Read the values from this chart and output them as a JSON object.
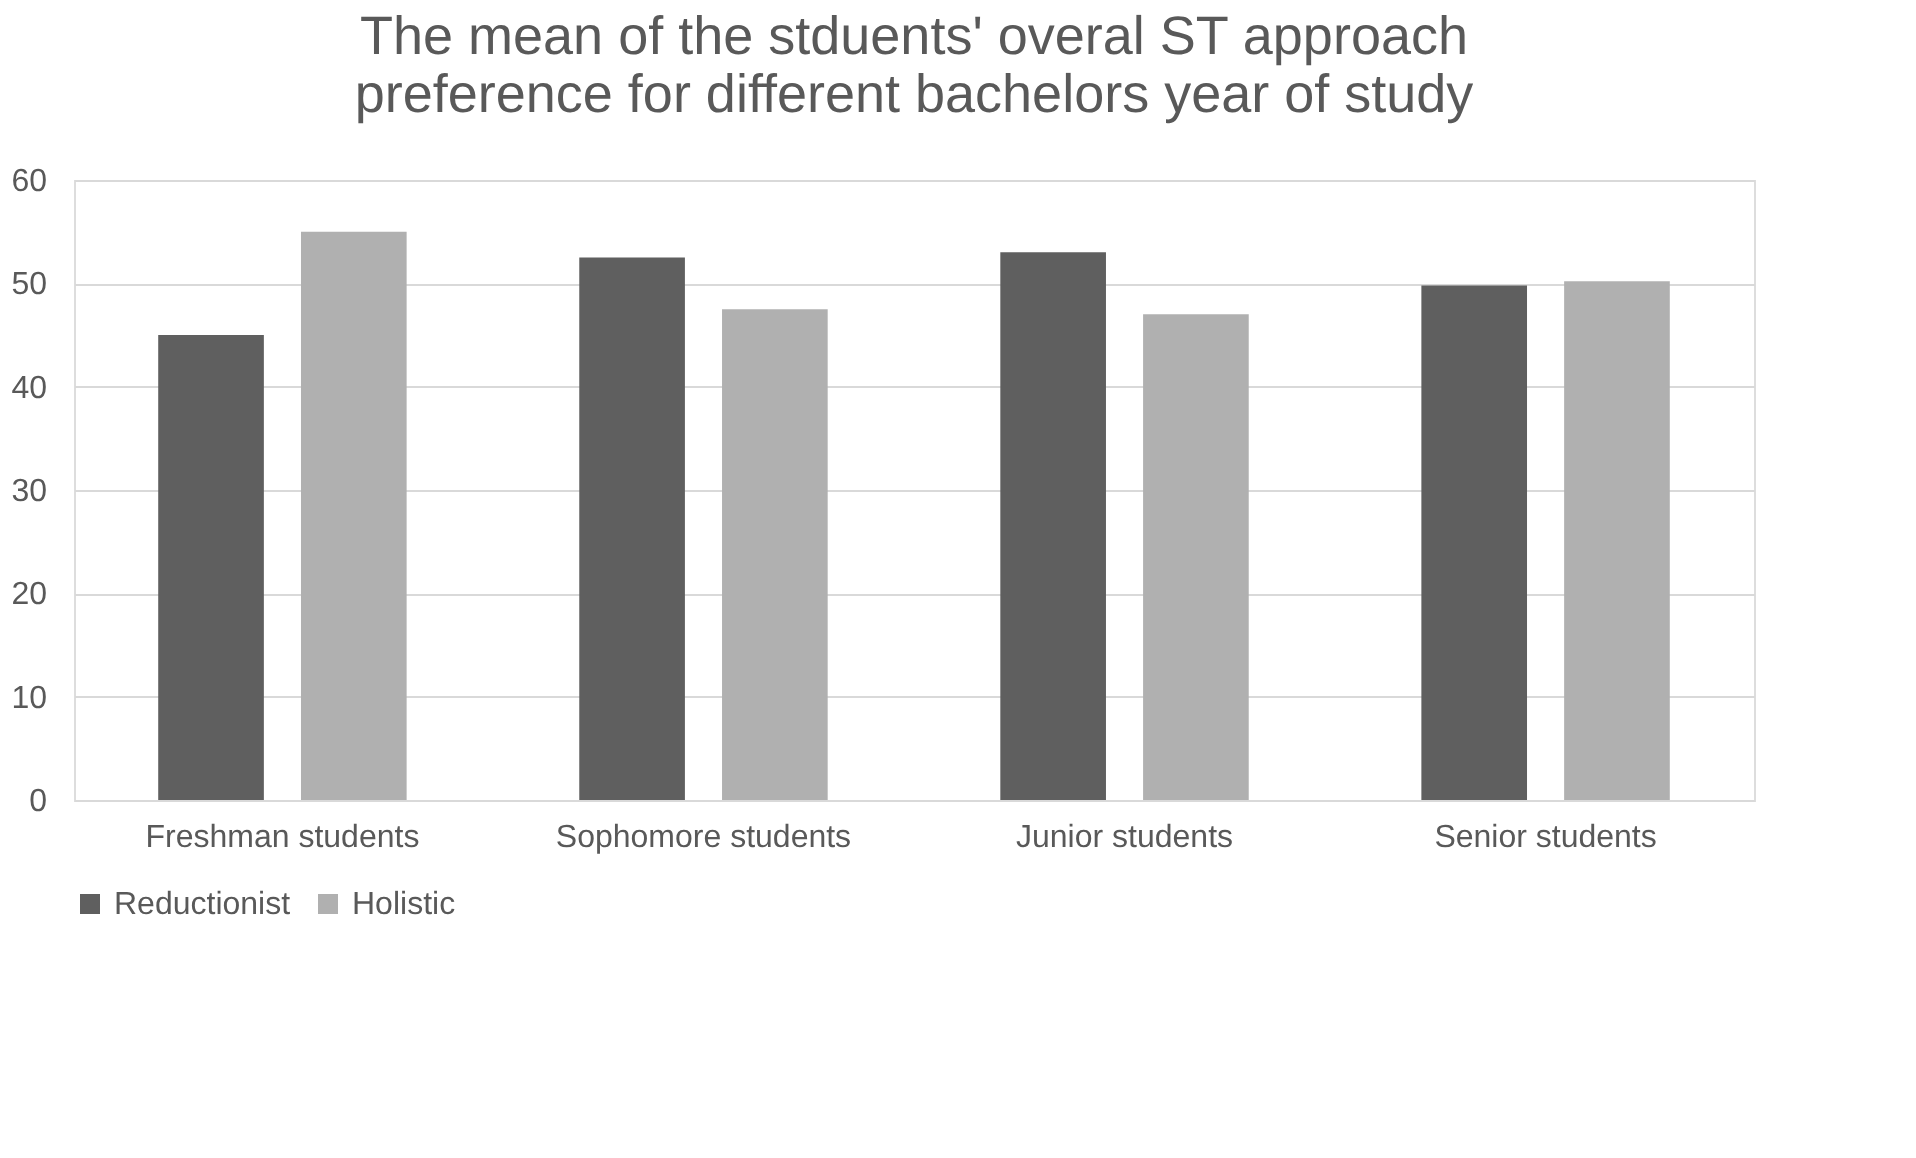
{
  "chart_data": {
    "type": "bar",
    "title": [
      "The mean of the stduents' overal ST approach",
      "preference for different bachelors year of study"
    ],
    "categories": [
      "Freshman students",
      "Sophomore students",
      "Junior students",
      "Senior students"
    ],
    "series": [
      {
        "name": "Reductionist",
        "color": "#5f5f5f",
        "values": [
          45,
          52.5,
          53,
          49.8
        ]
      },
      {
        "name": "Holistic",
        "color": "#b0b0b0",
        "values": [
          55,
          47.5,
          47,
          50.2
        ]
      }
    ],
    "ylim": [
      0,
      60
    ],
    "yticks": [
      0,
      10,
      20,
      30,
      40,
      50,
      60
    ],
    "grid": "y",
    "legend": "bottom"
  }
}
